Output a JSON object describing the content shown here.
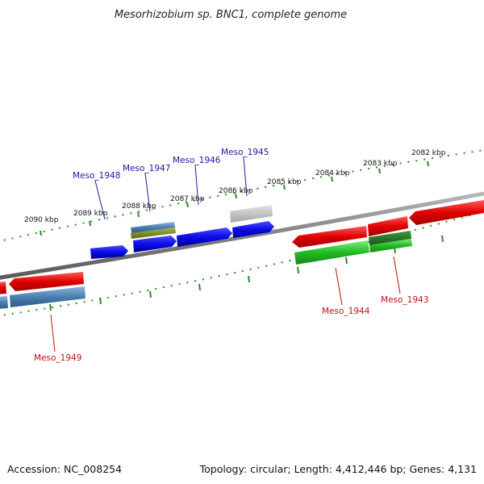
{
  "title": "Mesorhizobium sp. BNC1, complete genome",
  "accession": "Accession: NC_008254",
  "topology": "Topology: circular; Length: 4,412,446 bp; Genes: 4,131",
  "colors": {
    "backbone": "#8a8a8a",
    "ticks": "#2a8a2a",
    "forward_blue": "#0b0be8",
    "reverse_red": "#e00000",
    "green": "#22bb22",
    "dark_green": "#1f7a1f",
    "steel_blue": "#4a7fb0",
    "olive": "#7a8a1a",
    "gray": "#bdbdbd",
    "label_blue": "#1a1aa0",
    "label_red": "#c01010"
  },
  "scale_labels": [
    "2090 kbp",
    "2089 kbp",
    "2088 kbp",
    "2087 kbp",
    "2086 kbp",
    "2085 kbp",
    "2084 kbp",
    "2083 kbp",
    "2082 kbp"
  ],
  "gene_labels": {
    "top": [
      "Meso_1948",
      "Meso_1947",
      "Meso_1946",
      "Meso_1945"
    ],
    "bottom": [
      "Meso_1949",
      "Meso_1944",
      "Meso_1943"
    ]
  }
}
